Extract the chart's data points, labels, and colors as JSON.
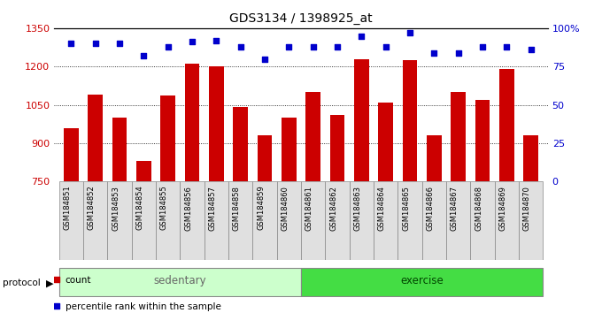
{
  "title": "GDS3134 / 1398925_at",
  "samples": [
    "GSM184851",
    "GSM184852",
    "GSM184853",
    "GSM184854",
    "GSM184855",
    "GSM184856",
    "GSM184857",
    "GSM184858",
    "GSM184859",
    "GSM184860",
    "GSM184861",
    "GSM184862",
    "GSM184863",
    "GSM184864",
    "GSM184865",
    "GSM184866",
    "GSM184867",
    "GSM184868",
    "GSM184869",
    "GSM184870"
  ],
  "counts": [
    960,
    1090,
    1000,
    830,
    1085,
    1210,
    1200,
    1040,
    930,
    1000,
    1100,
    1010,
    1230,
    1060,
    1225,
    930,
    1100,
    1070,
    1190,
    930
  ],
  "percentiles": [
    90,
    90,
    90,
    82,
    88,
    91,
    92,
    88,
    80,
    88,
    88,
    88,
    95,
    88,
    97,
    84,
    84,
    88,
    88,
    86
  ],
  "bar_color": "#cc0000",
  "dot_color": "#0000cc",
  "ylim_left": [
    750,
    1350
  ],
  "ylim_right": [
    0,
    100
  ],
  "yticks_left": [
    750,
    900,
    1050,
    1200,
    1350
  ],
  "yticks_right": [
    0,
    25,
    50,
    75,
    100
  ],
  "ytick_labels_right": [
    "0",
    "25",
    "50",
    "75",
    "100%"
  ],
  "grid_lines": [
    900,
    1050,
    1200
  ],
  "sedentary_count": 10,
  "exercise_count": 10,
  "sedentary_label": "sedentary",
  "exercise_label": "exercise",
  "protocol_label": "protocol",
  "legend_count_label": "count",
  "legend_pct_label": "percentile rank within the sample",
  "sedentary_color": "#ccffcc",
  "exercise_color": "#44dd44",
  "bar_width": 0.6
}
